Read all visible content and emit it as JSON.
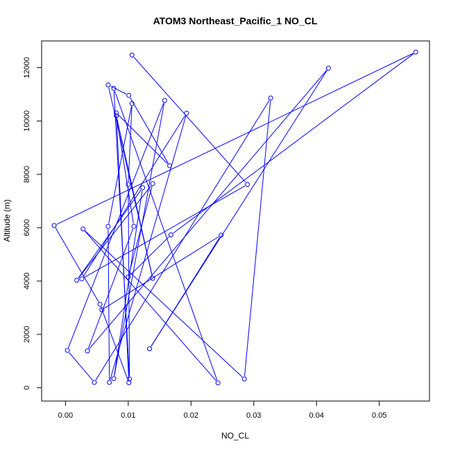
{
  "chart_data": {
    "type": "line",
    "title": "ATOM3 Northeast_Pacific_1 NO_CL",
    "xlabel": "NO_CL",
    "ylabel": "Altitude (m)",
    "xlim": [
      -0.0038,
      0.058
    ],
    "ylim": [
      -500,
      13000
    ],
    "x_ticks": [
      0.0,
      0.01,
      0.02,
      0.03,
      0.04,
      0.05
    ],
    "x_tick_labels": [
      "0.00",
      "0.01",
      "0.02",
      "0.03",
      "0.04",
      "0.05"
    ],
    "y_ticks": [
      0,
      2000,
      4000,
      6000,
      8000,
      10000,
      12000
    ],
    "y_tick_labels": [
      "0",
      "2000",
      "4000",
      "6000",
      "8000",
      "10000",
      "12000"
    ],
    "grid": false,
    "series": [
      {
        "color": "#0000ff",
        "marker": "open-circle",
        "points": [
          {
            "x": 0.0106,
            "y": 12470
          },
          {
            "x": 0.029,
            "y": 7620
          },
          {
            "x": 0.0026,
            "y": 4080
          },
          {
            "x": 0.0193,
            "y": 10290
          },
          {
            "x": 0.007,
            "y": 200
          },
          {
            "x": 0.0068,
            "y": 6050
          },
          {
            "x": 0.0106,
            "y": 10650
          },
          {
            "x": 0.01,
            "y": 7620
          },
          {
            "x": 0.0102,
            "y": 330
          },
          {
            "x": 0.0077,
            "y": 11220
          },
          {
            "x": 0.0243,
            "y": 180
          },
          {
            "x": 0.0028,
            "y": 5950
          },
          {
            "x": 0.0285,
            "y": 330
          },
          {
            "x": 0.0327,
            "y": 10860
          },
          {
            "x": 0.0046,
            "y": 200
          },
          {
            "x": 0.0003,
            "y": 1400
          },
          {
            "x": 0.0158,
            "y": 10770
          },
          {
            "x": 0.0077,
            "y": 340
          },
          {
            "x": 0.0123,
            "y": 7500
          },
          {
            "x": 0.0018,
            "y": 4030
          },
          {
            "x": 0.0139,
            "y": 7650
          },
          {
            "x": 0.01,
            "y": 4150
          },
          {
            "x": 0.0168,
            "y": 5730
          },
          {
            "x": 0.0558,
            "y": 12580
          },
          {
            "x": -0.0018,
            "y": 6080
          },
          {
            "x": 0.0055,
            "y": 3130
          },
          {
            "x": 0.0101,
            "y": 190
          },
          {
            "x": 0.0081,
            "y": 10300
          },
          {
            "x": 0.0166,
            "y": 8320
          },
          {
            "x": 0.0101,
            "y": 10960
          },
          {
            "x": 0.0068,
            "y": 11350
          },
          {
            "x": 0.0139,
            "y": 4100
          },
          {
            "x": 0.0081,
            "y": 10200
          },
          {
            "x": 0.0109,
            "y": 6050
          },
          {
            "x": 0.0035,
            "y": 1380
          },
          {
            "x": 0.0419,
            "y": 11980
          },
          {
            "x": 0.0134,
            "y": 1460
          },
          {
            "x": 0.0248,
            "y": 5720
          },
          {
            "x": 0.0058,
            "y": 2920
          }
        ]
      }
    ]
  }
}
